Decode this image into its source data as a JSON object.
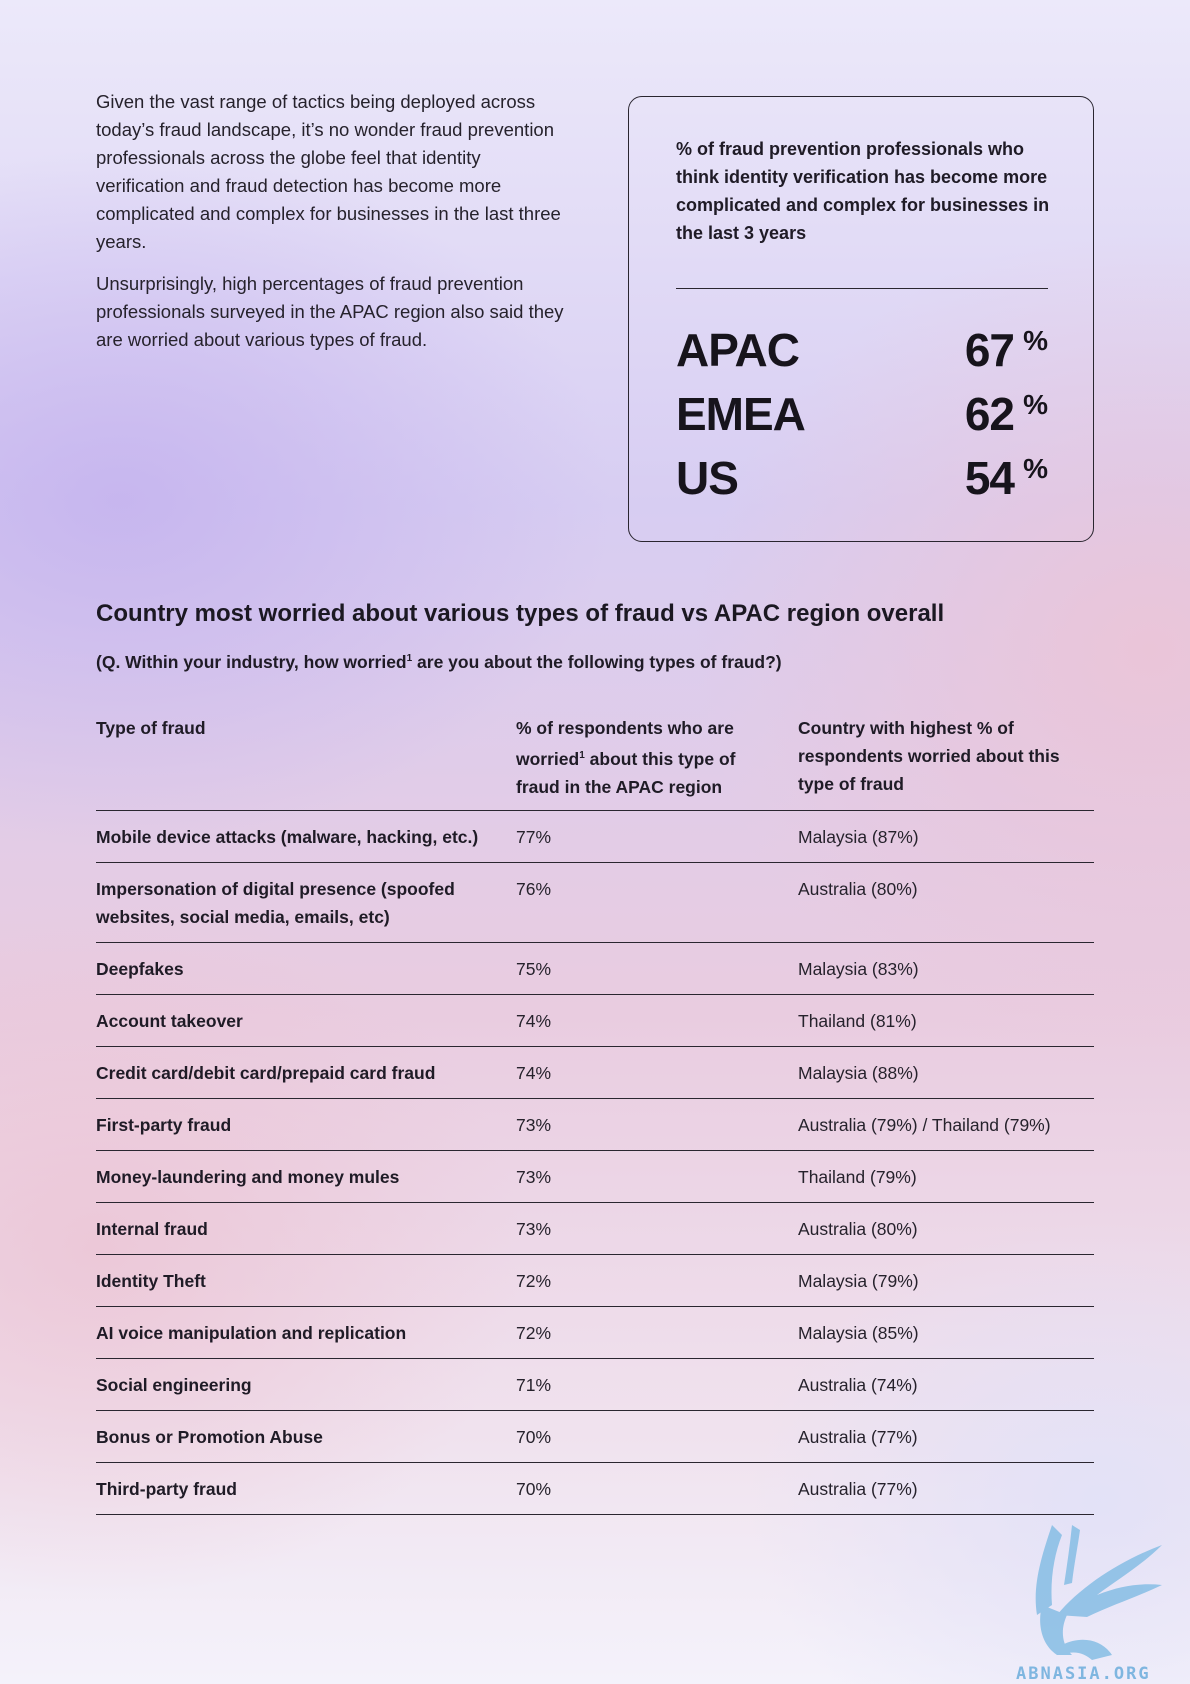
{
  "intro": {
    "p1": "Given the vast range of tactics being deployed across today’s fraud landscape, it’s no wonder fraud prevention professionals across the globe feel that identity verification and fraud detection has become more complicated and complex for businesses in the last three years.",
    "p2": "Unsurprisingly, high percentages of fraud prevention professionals surveyed in the APAC region also said they are worried about various types of fraud."
  },
  "stat_box": {
    "heading": "% of fraud prevention professionals who think identity verification has become more complicated and complex for businesses in the last 3 years",
    "rows": [
      {
        "region": "APAC",
        "value": "67",
        "unit": "%"
      },
      {
        "region": "EMEA",
        "value": "62",
        "unit": "%"
      },
      {
        "region": "US",
        "value": "54",
        "unit": "%"
      }
    ]
  },
  "section": {
    "title": "Country most worried about various types of fraud vs APAC region overall",
    "question_a": "(Q. Within your industry, how worried",
    "question_sup": "1",
    "question_b": " are you about the following types of fraud?)"
  },
  "table": {
    "headers": {
      "type": "Type of fraud",
      "pct_a": "% of respondents who are worried",
      "pct_sup": "1",
      "pct_b": " about this type of fraud in the APAC region",
      "country": "Country with highest % of respondents worried about this type of fraud"
    },
    "rows": [
      {
        "type": "Mobile device attacks (malware, hacking, etc.)",
        "pct": "77%",
        "country": "Malaysia (87%)"
      },
      {
        "type": "Impersonation of digital presence (spoofed websites, social media, emails, etc)",
        "pct": "76%",
        "country": "Australia (80%)"
      },
      {
        "type": "Deepfakes",
        "pct": "75%",
        "country": "Malaysia (83%)"
      },
      {
        "type": "Account takeover",
        "pct": "74%",
        "country": "Thailand (81%)"
      },
      {
        "type": "Credit card/debit card/prepaid card fraud",
        "pct": "74%",
        "country": "Malaysia (88%)"
      },
      {
        "type": "First-party fraud",
        "pct": "73%",
        "country": "Australia (79%) / Thailand (79%)"
      },
      {
        "type": "Money-laundering and money mules",
        "pct": "73%",
        "country": "Thailand (79%)"
      },
      {
        "type": "Internal fraud",
        "pct": "73%",
        "country": "Australia (80%)"
      },
      {
        "type": "Identity Theft",
        "pct": "72%",
        "country": "Malaysia (79%)"
      },
      {
        "type": "AI voice manipulation and replication",
        "pct": "72%",
        "country": "Malaysia (85%)"
      },
      {
        "type": "Social engineering",
        "pct": "71%",
        "country": "Australia (74%)"
      },
      {
        "type": "Bonus or Promotion Abuse",
        "pct": "70%",
        "country": "Australia (77%)"
      },
      {
        "type": "Third-party fraud",
        "pct": "70%",
        "country": "Australia (77%)"
      }
    ]
  },
  "watermark": {
    "text": "ABNASIA.ORG",
    "color": "#7fb6e0"
  }
}
